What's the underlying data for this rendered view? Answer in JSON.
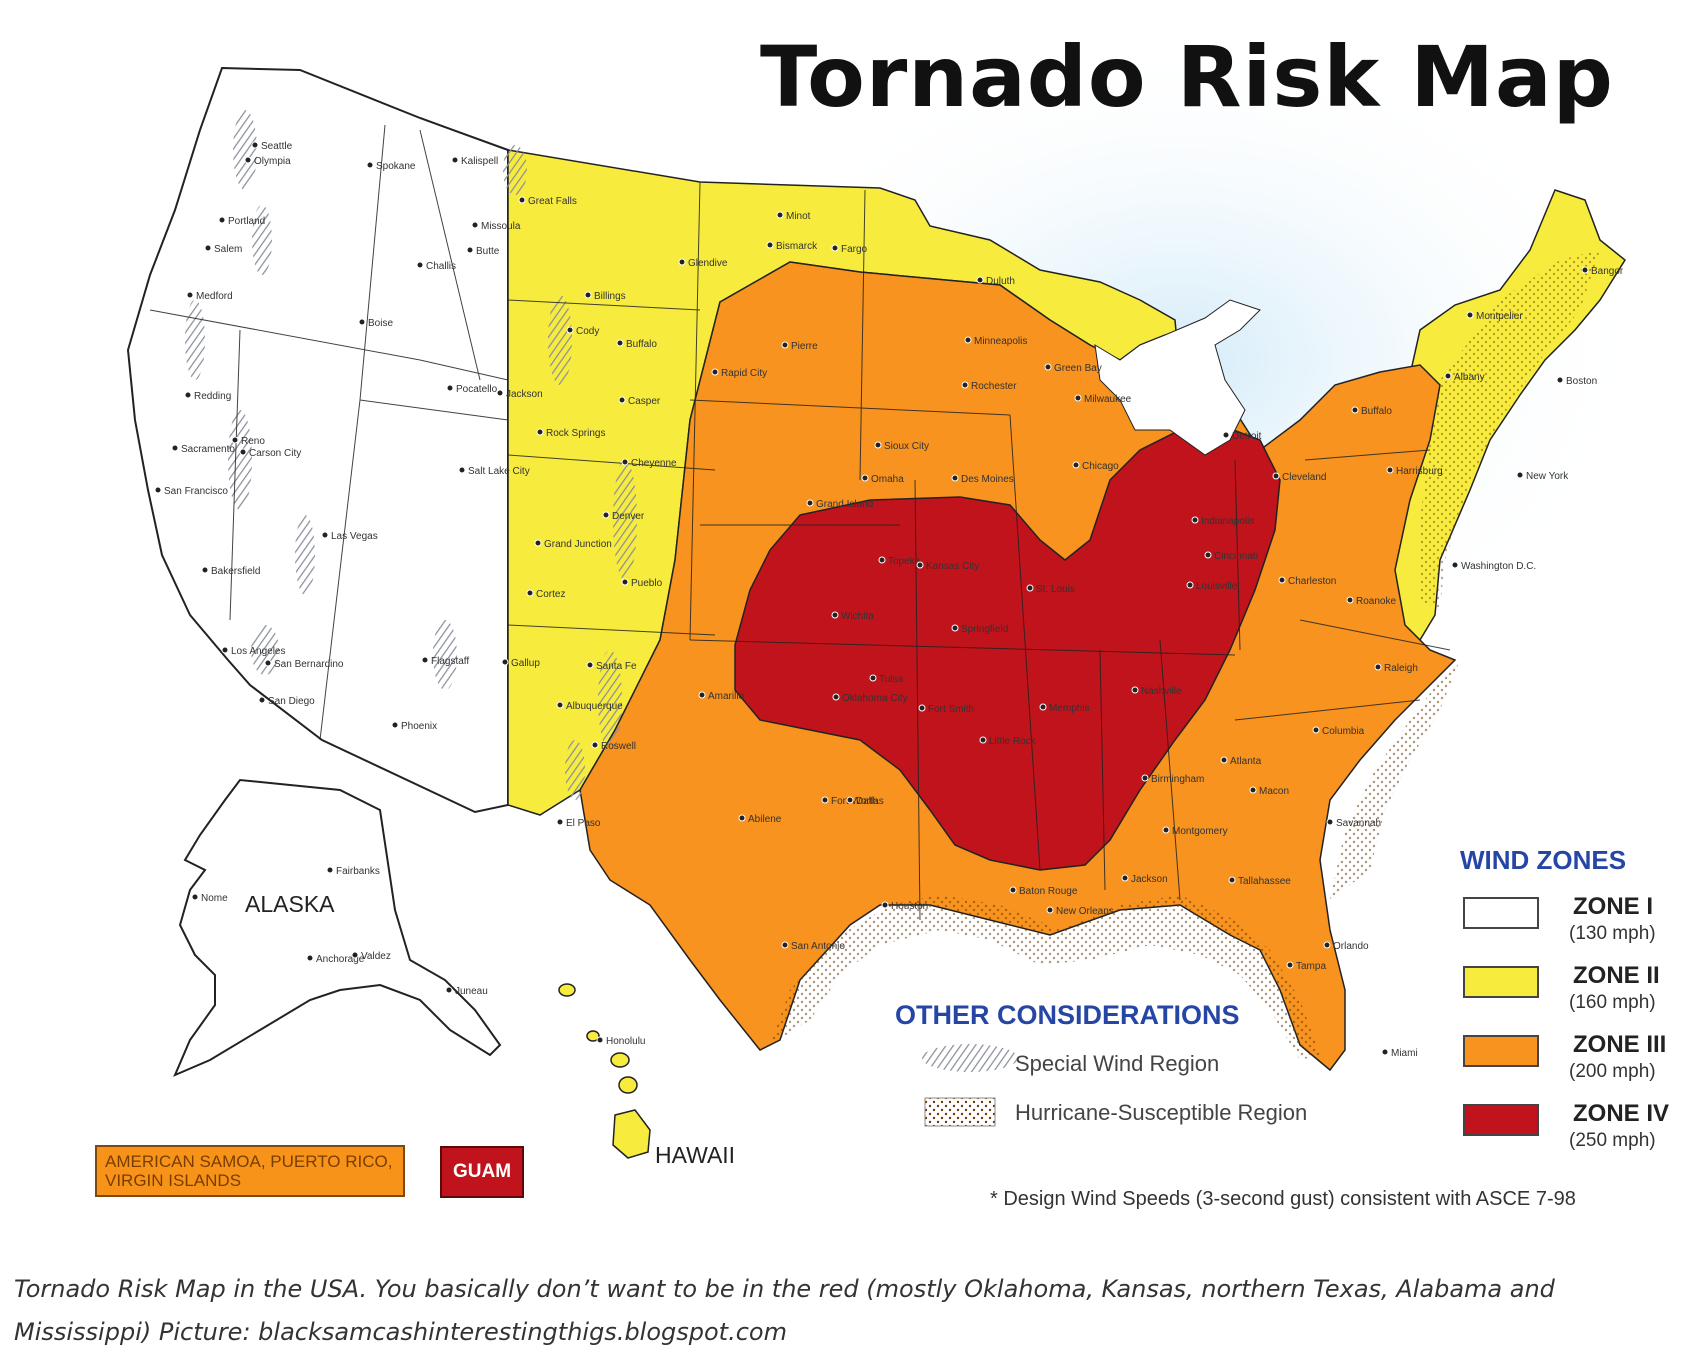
{
  "title": "Tornado Risk Map",
  "wind_zones": {
    "heading": "WIND ZONES",
    "zones": [
      {
        "name": "ZONE I",
        "speed": "(130 mph)",
        "color": "#ffffff"
      },
      {
        "name": "ZONE II",
        "speed": "(160 mph)",
        "color": "#f7ec3e"
      },
      {
        "name": "ZONE III",
        "speed": "(200 mph)",
        "color": "#f7931e"
      },
      {
        "name": "ZONE IV",
        "speed": "(250 mph)",
        "color": "#c1131b"
      }
    ]
  },
  "other_considerations": {
    "heading": "OTHER CONSIDERATIONS",
    "items": [
      {
        "label": "Special Wind Region",
        "icon": "special-wind-region-hatch-icon"
      },
      {
        "label": "Hurricane-Susceptible Region",
        "icon": "hurricane-dotted-pattern-icon"
      }
    ]
  },
  "insets": {
    "alaska": "ALASKA",
    "hawaii": "HAWAII",
    "territories": "AMERICAN SAMOA, PUERTO RICO, VIRGIN ISLANDS",
    "guam": "GUAM"
  },
  "footnote": "* Design Wind Speeds (3-second gust) consistent with ASCE 7-98",
  "caption": "Tornado Risk Map in the USA. You basically don’t want to be in the red (mostly Oklahoma, Kansas, northern Texas, Alabama and Mississippi) Picture: blacksamcashinterestingthigs.blogspot.com",
  "cities": [
    "Seattle",
    "Olympia",
    "Spokane",
    "Portland",
    "Salem",
    "Medford",
    "Boise",
    "Challis",
    "Missoula",
    "Butte",
    "Kalispell",
    "Great Falls",
    "Glendive",
    "Billings",
    "Cody",
    "Buffalo",
    "Casper",
    "Rock Springs",
    "Cheyenne",
    "Denver",
    "Grand Junction",
    "Cortez",
    "Pueblo",
    "Gallup",
    "Santa Fe",
    "Albuquerque",
    "Roswell",
    "El Paso",
    "Reno",
    "Carson City",
    "Sacramento",
    "San Francisco",
    "Redding",
    "Bakersfield",
    "Las Vegas",
    "Los Angeles",
    "San Bernardino",
    "San Diego",
    "Flagstaff",
    "Phoenix",
    "Salt Lake City",
    "Pocatello",
    "Jackson",
    "Minot",
    "Bismarck",
    "Fargo",
    "Duluth",
    "Rapid City",
    "Pierre",
    "Minneapolis",
    "Rochester",
    "Green Bay",
    "Milwaukee",
    "Sioux City",
    "Omaha",
    "Des Moines",
    "Chicago",
    "Grand Island",
    "Topeka",
    "Kansas City",
    "Springfield",
    "St. Louis",
    "Wichita",
    "Tulsa",
    "Oklahoma City",
    "Amarillo",
    "Fort Smith",
    "Little Rock",
    "Memphis",
    "Nashville",
    "Louisville",
    "Cincinnati",
    "Indianapolis",
    "Detroit",
    "Cleveland",
    "Charleston",
    "Roanoke",
    "Raleigh",
    "Columbia",
    "Atlanta",
    "Macon",
    "Savannah",
    "Birmingham",
    "Montgomery",
    "Jackson",
    "Baton Rouge",
    "New Orleans",
    "Houston",
    "San Antonio",
    "Fort Worth",
    "Dallas",
    "Abilene",
    "Tallahassee",
    "Orlando",
    "Tampa",
    "Miami",
    "Washington D.C.",
    "New York",
    "Boston",
    "Albany",
    "Montpelier",
    "Bangor",
    "Buffalo",
    "Harrisburg",
    "Fairbanks",
    "Nome",
    "Anchorage",
    "Valdez",
    "Juneau",
    "Honolulu"
  ]
}
